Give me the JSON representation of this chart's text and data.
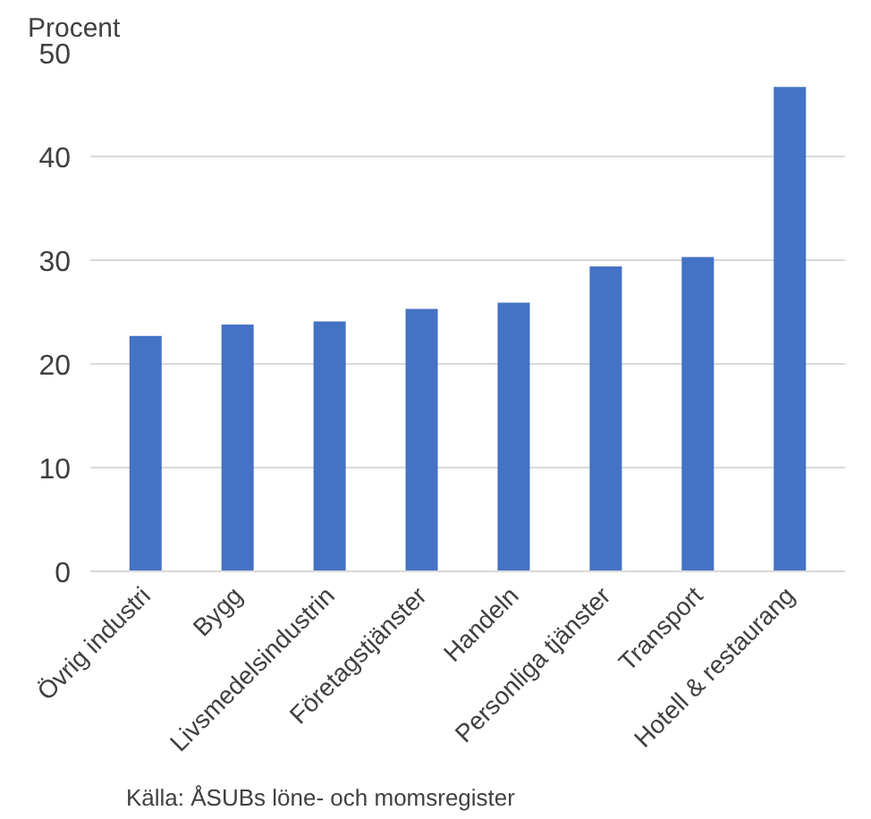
{
  "chart_data": {
    "type": "bar",
    "ylabel": "Procent",
    "categories": [
      "Övrig industri",
      "Bygg",
      "Livsmedelsindustrin",
      "Företagstjänster",
      "Handeln",
      "Personliga tjänster",
      "Transport",
      "Hotell & restaurang"
    ],
    "values": [
      22.7,
      23.8,
      24.1,
      25.3,
      25.9,
      29.4,
      30.3,
      46.7
    ],
    "color": "#4472c4",
    "ylim": [
      0,
      50
    ],
    "yticks": [
      0,
      10,
      20,
      30,
      40,
      50
    ],
    "grid": "y",
    "annotations": [
      "Källa: ÅSUBs löne- och momsregister"
    ]
  }
}
